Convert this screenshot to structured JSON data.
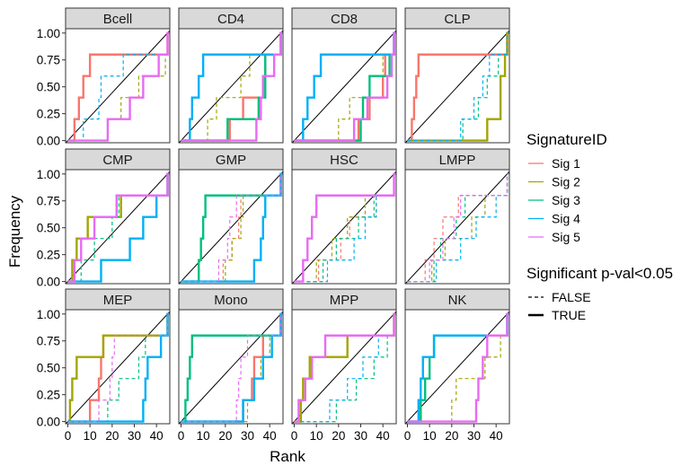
{
  "chart_data": {
    "type": "line",
    "subtype": "faceted step (ECDF) plot",
    "xlabel": "Rank",
    "ylabel": "Frequency",
    "xlim": [
      -1,
      46
    ],
    "ylim": [
      -0.02,
      1.04
    ],
    "x_ticks": [
      0,
      10,
      20,
      30,
      40
    ],
    "x_tick_labels": [
      "0",
      "10",
      "20",
      "30",
      "40"
    ],
    "y_ticks": [
      0,
      0.25,
      0.5,
      0.75,
      1
    ],
    "y_tick_labels": [
      "0.00",
      "0.25",
      "0.50",
      "0.75",
      "1.00"
    ],
    "grid": false,
    "diagonal_reference_line": true,
    "legend_position": "right",
    "legend": {
      "color_title": "SignatureID",
      "color_items": [
        {
          "label": "Sig 1",
          "color": "#F8766D"
        },
        {
          "label": "Sig 2",
          "color": "#A3A500"
        },
        {
          "label": "Sig 3",
          "color": "#00BF7D"
        },
        {
          "label": "Sig 4",
          "color": "#00B0F6"
        },
        {
          "label": "Sig 5",
          "color": "#E76BF3"
        }
      ],
      "linetype_title": "Significant p-val<0.05",
      "linetype_items": [
        {
          "label": "FALSE",
          "linetype": "dashed"
        },
        {
          "label": "TRUE",
          "linetype": "solid"
        }
      ]
    },
    "panels": [
      {
        "title": "Bcell",
        "series": [
          {
            "sig": 0,
            "significant": true,
            "x": [
              3,
              5,
              7,
              10,
              45
            ]
          },
          {
            "sig": 1,
            "significant": false,
            "x": [
              18,
              24,
              32,
              44,
              45
            ]
          },
          {
            "sig": 3,
            "significant": false,
            "x": [
              7,
              14,
              15,
              25,
              45
            ]
          },
          {
            "sig": 4,
            "significant": true,
            "x": [
              18,
              28,
              34,
              41,
              45
            ]
          }
        ]
      },
      {
        "title": "CD4",
        "series": [
          {
            "sig": 0,
            "significant": true,
            "x": [
              22,
              28,
              37,
              38,
              45
            ]
          },
          {
            "sig": 1,
            "significant": false,
            "x": [
              12,
              16,
              27,
              31,
              45
            ]
          },
          {
            "sig": 2,
            "significant": true,
            "x": [
              21,
              35,
              38,
              38,
              45
            ]
          },
          {
            "sig": 3,
            "significant": true,
            "x": [
              4,
              5,
              8,
              10,
              45
            ]
          },
          {
            "sig": 4,
            "significant": true,
            "x": [
              34,
              36,
              37,
              42,
              45
            ]
          }
        ]
      },
      {
        "title": "CD8",
        "series": [
          {
            "sig": 0,
            "significant": true,
            "x": [
              29,
              34,
              40,
              41,
              45
            ]
          },
          {
            "sig": 1,
            "significant": false,
            "x": [
              20,
              25,
              34,
              40,
              45
            ]
          },
          {
            "sig": 2,
            "significant": true,
            "x": [
              30,
              31,
              34,
              43,
              45
            ]
          },
          {
            "sig": 3,
            "significant": true,
            "x": [
              4,
              6,
              9,
              12,
              45
            ]
          },
          {
            "sig": 4,
            "significant": true,
            "x": [
              27,
              33,
              42,
              44,
              45
            ]
          }
        ]
      },
      {
        "title": "CLP",
        "series": [
          {
            "sig": 0,
            "significant": true,
            "x": [
              2,
              3,
              4,
              5,
              45
            ]
          },
          {
            "sig": 1,
            "significant": true,
            "x": [
              36,
              42,
              42,
              44,
              45
            ]
          },
          {
            "sig": 2,
            "significant": false,
            "x": [
              25,
              32,
              36,
              41,
              45
            ]
          },
          {
            "sig": 3,
            "significant": false,
            "x": [
              24,
              30,
              34,
              37,
              45
            ]
          }
        ]
      },
      {
        "title": "CMP",
        "series": [
          {
            "sig": 1,
            "significant": true,
            "x": [
              2,
              4,
              9,
              24,
              45
            ]
          },
          {
            "sig": 2,
            "significant": false,
            "x": [
              6,
              12,
              20,
              23,
              45
            ]
          },
          {
            "sig": 3,
            "significant": true,
            "x": [
              15,
              28,
              34,
              40,
              45
            ]
          },
          {
            "sig": 4,
            "significant": true,
            "x": [
              3,
              6,
              12,
              22,
              45
            ]
          }
        ]
      },
      {
        "title": "GMP",
        "series": [
          {
            "sig": 0,
            "significant": false,
            "x": [
              19,
              23,
              26,
              27,
              45
            ]
          },
          {
            "sig": 1,
            "significant": false,
            "x": [
              20,
              23,
              27,
              28,
              45
            ]
          },
          {
            "sig": 2,
            "significant": true,
            "x": [
              8,
              9,
              10,
              11,
              45
            ]
          },
          {
            "sig": 3,
            "significant": true,
            "x": [
              33,
              36,
              37,
              38,
              45
            ]
          },
          {
            "sig": 4,
            "significant": false,
            "x": [
              17,
              21,
              22,
              25,
              45
            ]
          }
        ]
      },
      {
        "title": "HSC",
        "series": [
          {
            "sig": 0,
            "significant": false,
            "x": [
              11,
              21,
              25,
              37,
              45
            ]
          },
          {
            "sig": 1,
            "significant": false,
            "x": [
              10,
              17,
              24,
              32,
              45
            ]
          },
          {
            "sig": 2,
            "significant": false,
            "x": [
              13,
              19,
              29,
              36,
              45
            ]
          },
          {
            "sig": 3,
            "significant": false,
            "x": [
              15,
              27,
              32,
              37,
              45
            ]
          },
          {
            "sig": 4,
            "significant": true,
            "x": [
              4,
              6,
              8,
              10,
              45
            ]
          }
        ]
      },
      {
        "title": "LMPP",
        "series": [
          {
            "sig": 0,
            "significant": false,
            "x": [
              8,
              12,
              16,
              23,
              45
            ]
          },
          {
            "sig": 1,
            "significant": false,
            "x": [
              11,
              17,
              29,
              35,
              45
            ]
          },
          {
            "sig": 2,
            "significant": false,
            "x": [
              12,
              15,
              22,
              26,
              45
            ]
          },
          {
            "sig": 3,
            "significant": false,
            "x": [
              13,
              24,
              31,
              40,
              45
            ]
          },
          {
            "sig": 4,
            "significant": false,
            "x": [
              10,
              16,
              21,
              24,
              45
            ]
          }
        ]
      },
      {
        "title": "MEP",
        "series": [
          {
            "sig": 0,
            "significant": true,
            "x": [
              10,
              14,
              15,
              16,
              45
            ]
          },
          {
            "sig": 1,
            "significant": true,
            "x": [
              1,
              2,
              4,
              16,
              45
            ]
          },
          {
            "sig": 2,
            "significant": false,
            "x": [
              18,
              23,
              32,
              35,
              45
            ]
          },
          {
            "sig": 3,
            "significant": true,
            "x": [
              34,
              35,
              36,
              42,
              45
            ]
          },
          {
            "sig": 4,
            "significant": false,
            "x": [
              14,
              19,
              20,
              21,
              45
            ]
          }
        ]
      },
      {
        "title": "Mono",
        "series": [
          {
            "sig": 0,
            "significant": true,
            "x": [
              28,
              32,
              33,
              37,
              45
            ]
          },
          {
            "sig": 1,
            "significant": false,
            "x": [
              30,
              33,
              36,
              40,
              45
            ]
          },
          {
            "sig": 2,
            "significant": true,
            "x": [
              2,
              3,
              4,
              5,
              45
            ]
          },
          {
            "sig": 3,
            "significant": true,
            "x": [
              28,
              33,
              37,
              41,
              45
            ]
          },
          {
            "sig": 4,
            "significant": false,
            "x": [
              25,
              26,
              27,
              30,
              45
            ]
          }
        ]
      },
      {
        "title": "MPP",
        "series": [
          {
            "sig": 1,
            "significant": true,
            "x": [
              3,
              4,
              7,
              24,
              45
            ]
          },
          {
            "sig": 2,
            "significant": false,
            "x": [
              19,
              28,
              36,
              42,
              45
            ]
          },
          {
            "sig": 3,
            "significant": false,
            "x": [
              16,
              24,
              31,
              38,
              45
            ]
          },
          {
            "sig": 4,
            "significant": true,
            "x": [
              2,
              5,
              8,
              14,
              45
            ]
          }
        ]
      },
      {
        "title": "NK",
        "series": [
          {
            "sig": 1,
            "significant": false,
            "x": [
              20,
              22,
              35,
              42,
              45
            ]
          },
          {
            "sig": 2,
            "significant": true,
            "x": [
              6,
              8,
              10,
              12,
              45
            ]
          },
          {
            "sig": 3,
            "significant": true,
            "x": [
              5,
              6,
              7,
              12,
              45
            ]
          },
          {
            "sig": 4,
            "significant": true,
            "x": [
              31,
              32,
              34,
              36,
              45
            ]
          }
        ]
      }
    ]
  }
}
